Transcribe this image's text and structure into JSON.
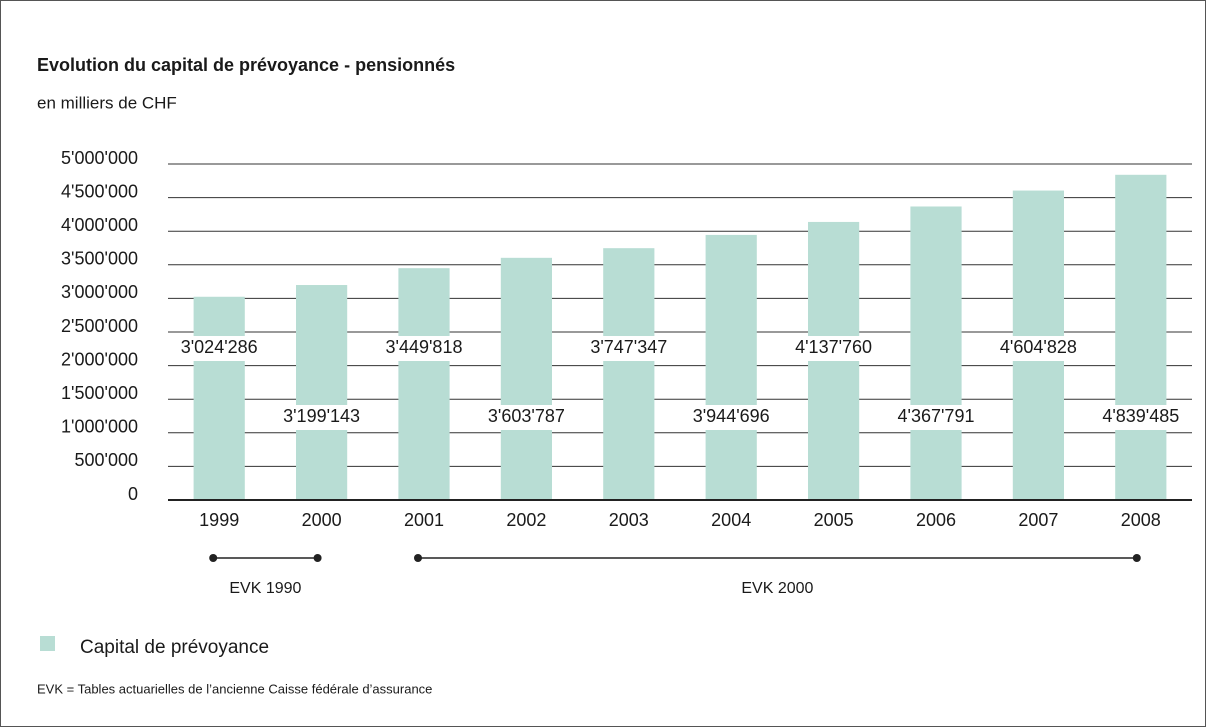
{
  "chart_data": {
    "type": "bar",
    "title": "Evolution du capital de prévoyance - pensionnés",
    "subtitle": "en milliers de CHF",
    "categories": [
      "1999",
      "2000",
      "2001",
      "2002",
      "2003",
      "2004",
      "2005",
      "2006",
      "2007",
      "2008"
    ],
    "series": [
      {
        "name": "Capital de prévoyance",
        "color": "#b8ddd4",
        "values": [
          3024286,
          3199143,
          3449818,
          3603787,
          3747347,
          3944696,
          4137760,
          4367791,
          4604828,
          4839485
        ],
        "value_labels": [
          "3'024'286",
          "3'199'143",
          "3'449'818",
          "3'603'787",
          "3'747'347",
          "3'944'696",
          "4'137'760",
          "4'367'791",
          "4'604'828",
          "4'839'485"
        ]
      }
    ],
    "ylim": [
      0,
      5000000
    ],
    "yticks": [
      0,
      {
        "value": 500000,
        "label": "500'000"
      },
      {
        "value": 1000000,
        "label": "1'000'000"
      },
      {
        "value": 1500000,
        "label": "1'500'000"
      },
      {
        "value": 2000000,
        "label": "2'000'000"
      },
      {
        "value": 2500000,
        "label": "2'500'000"
      },
      {
        "value": 3000000,
        "label": "3'000'000"
      },
      {
        "value": 3500000,
        "label": "3'500'000"
      },
      {
        "value": 4000000,
        "label": "4'000'000"
      },
      {
        "value": 4500000,
        "label": "4'500'000"
      },
      {
        "value": 5000000,
        "label": "5'000'000"
      }
    ],
    "grid": true,
    "periods": [
      {
        "label": "EVK 1990",
        "from": "1999",
        "to": "2000"
      },
      {
        "label": "EVK 2000",
        "from": "2001",
        "to": "2008"
      }
    ],
    "footnote": "EVK = Tables actuarielles de l’ancienne Caisse fédérale d’assurance"
  }
}
